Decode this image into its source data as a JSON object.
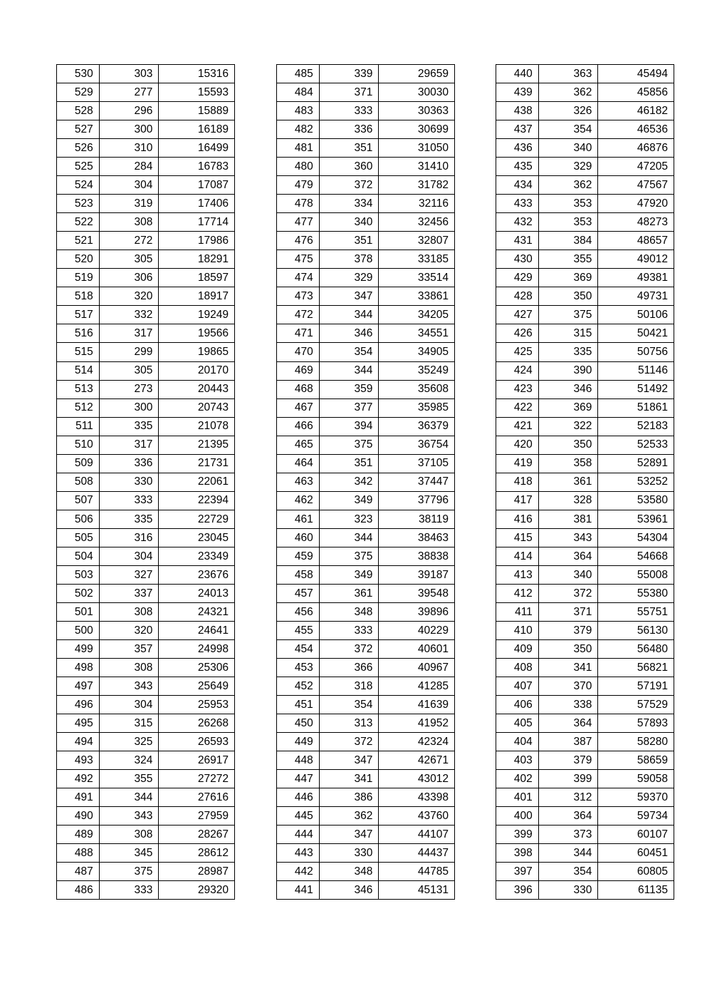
{
  "tables": [
    {
      "rows": [
        [
          "530",
          "303",
          "15316"
        ],
        [
          "529",
          "277",
          "15593"
        ],
        [
          "528",
          "296",
          "15889"
        ],
        [
          "527",
          "300",
          "16189"
        ],
        [
          "526",
          "310",
          "16499"
        ],
        [
          "525",
          "284",
          "16783"
        ],
        [
          "524",
          "304",
          "17087"
        ],
        [
          "523",
          "319",
          "17406"
        ],
        [
          "522",
          "308",
          "17714"
        ],
        [
          "521",
          "272",
          "17986"
        ],
        [
          "520",
          "305",
          "18291"
        ],
        [
          "519",
          "306",
          "18597"
        ],
        [
          "518",
          "320",
          "18917"
        ],
        [
          "517",
          "332",
          "19249"
        ],
        [
          "516",
          "317",
          "19566"
        ],
        [
          "515",
          "299",
          "19865"
        ],
        [
          "514",
          "305",
          "20170"
        ],
        [
          "513",
          "273",
          "20443"
        ],
        [
          "512",
          "300",
          "20743"
        ],
        [
          "511",
          "335",
          "21078"
        ],
        [
          "510",
          "317",
          "21395"
        ],
        [
          "509",
          "336",
          "21731"
        ],
        [
          "508",
          "330",
          "22061"
        ],
        [
          "507",
          "333",
          "22394"
        ],
        [
          "506",
          "335",
          "22729"
        ],
        [
          "505",
          "316",
          "23045"
        ],
        [
          "504",
          "304",
          "23349"
        ],
        [
          "503",
          "327",
          "23676"
        ],
        [
          "502",
          "337",
          "24013"
        ],
        [
          "501",
          "308",
          "24321"
        ],
        [
          "500",
          "320",
          "24641"
        ],
        [
          "499",
          "357",
          "24998"
        ],
        [
          "498",
          "308",
          "25306"
        ],
        [
          "497",
          "343",
          "25649"
        ],
        [
          "496",
          "304",
          "25953"
        ],
        [
          "495",
          "315",
          "26268"
        ],
        [
          "494",
          "325",
          "26593"
        ],
        [
          "493",
          "324",
          "26917"
        ],
        [
          "492",
          "355",
          "27272"
        ],
        [
          "491",
          "344",
          "27616"
        ],
        [
          "490",
          "343",
          "27959"
        ],
        [
          "489",
          "308",
          "28267"
        ],
        [
          "488",
          "345",
          "28612"
        ],
        [
          "487",
          "375",
          "28987"
        ],
        [
          "486",
          "333",
          "29320"
        ]
      ]
    },
    {
      "rows": [
        [
          "485",
          "339",
          "29659"
        ],
        [
          "484",
          "371",
          "30030"
        ],
        [
          "483",
          "333",
          "30363"
        ],
        [
          "482",
          "336",
          "30699"
        ],
        [
          "481",
          "351",
          "31050"
        ],
        [
          "480",
          "360",
          "31410"
        ],
        [
          "479",
          "372",
          "31782"
        ],
        [
          "478",
          "334",
          "32116"
        ],
        [
          "477",
          "340",
          "32456"
        ],
        [
          "476",
          "351",
          "32807"
        ],
        [
          "475",
          "378",
          "33185"
        ],
        [
          "474",
          "329",
          "33514"
        ],
        [
          "473",
          "347",
          "33861"
        ],
        [
          "472",
          "344",
          "34205"
        ],
        [
          "471",
          "346",
          "34551"
        ],
        [
          "470",
          "354",
          "34905"
        ],
        [
          "469",
          "344",
          "35249"
        ],
        [
          "468",
          "359",
          "35608"
        ],
        [
          "467",
          "377",
          "35985"
        ],
        [
          "466",
          "394",
          "36379"
        ],
        [
          "465",
          "375",
          "36754"
        ],
        [
          "464",
          "351",
          "37105"
        ],
        [
          "463",
          "342",
          "37447"
        ],
        [
          "462",
          "349",
          "37796"
        ],
        [
          "461",
          "323",
          "38119"
        ],
        [
          "460",
          "344",
          "38463"
        ],
        [
          "459",
          "375",
          "38838"
        ],
        [
          "458",
          "349",
          "39187"
        ],
        [
          "457",
          "361",
          "39548"
        ],
        [
          "456",
          "348",
          "39896"
        ],
        [
          "455",
          "333",
          "40229"
        ],
        [
          "454",
          "372",
          "40601"
        ],
        [
          "453",
          "366",
          "40967"
        ],
        [
          "452",
          "318",
          "41285"
        ],
        [
          "451",
          "354",
          "41639"
        ],
        [
          "450",
          "313",
          "41952"
        ],
        [
          "449",
          "372",
          "42324"
        ],
        [
          "448",
          "347",
          "42671"
        ],
        [
          "447",
          "341",
          "43012"
        ],
        [
          "446",
          "386",
          "43398"
        ],
        [
          "445",
          "362",
          "43760"
        ],
        [
          "444",
          "347",
          "44107"
        ],
        [
          "443",
          "330",
          "44437"
        ],
        [
          "442",
          "348",
          "44785"
        ],
        [
          "441",
          "346",
          "45131"
        ]
      ]
    },
    {
      "rows": [
        [
          "440",
          "363",
          "45494"
        ],
        [
          "439",
          "362",
          "45856"
        ],
        [
          "438",
          "326",
          "46182"
        ],
        [
          "437",
          "354",
          "46536"
        ],
        [
          "436",
          "340",
          "46876"
        ],
        [
          "435",
          "329",
          "47205"
        ],
        [
          "434",
          "362",
          "47567"
        ],
        [
          "433",
          "353",
          "47920"
        ],
        [
          "432",
          "353",
          "48273"
        ],
        [
          "431",
          "384",
          "48657"
        ],
        [
          "430",
          "355",
          "49012"
        ],
        [
          "429",
          "369",
          "49381"
        ],
        [
          "428",
          "350",
          "49731"
        ],
        [
          "427",
          "375",
          "50106"
        ],
        [
          "426",
          "315",
          "50421"
        ],
        [
          "425",
          "335",
          "50756"
        ],
        [
          "424",
          "390",
          "51146"
        ],
        [
          "423",
          "346",
          "51492"
        ],
        [
          "422",
          "369",
          "51861"
        ],
        [
          "421",
          "322",
          "52183"
        ],
        [
          "420",
          "350",
          "52533"
        ],
        [
          "419",
          "358",
          "52891"
        ],
        [
          "418",
          "361",
          "53252"
        ],
        [
          "417",
          "328",
          "53580"
        ],
        [
          "416",
          "381",
          "53961"
        ],
        [
          "415",
          "343",
          "54304"
        ],
        [
          "414",
          "364",
          "54668"
        ],
        [
          "413",
          "340",
          "55008"
        ],
        [
          "412",
          "372",
          "55380"
        ],
        [
          "411",
          "371",
          "55751"
        ],
        [
          "410",
          "379",
          "56130"
        ],
        [
          "409",
          "350",
          "56480"
        ],
        [
          "408",
          "341",
          "56821"
        ],
        [
          "407",
          "370",
          "57191"
        ],
        [
          "406",
          "338",
          "57529"
        ],
        [
          "405",
          "364",
          "57893"
        ],
        [
          "404",
          "387",
          "58280"
        ],
        [
          "403",
          "379",
          "58659"
        ],
        [
          "402",
          "399",
          "59058"
        ],
        [
          "401",
          "312",
          "59370"
        ],
        [
          "400",
          "364",
          "59734"
        ],
        [
          "399",
          "373",
          "60107"
        ],
        [
          "398",
          "344",
          "60451"
        ],
        [
          "397",
          "354",
          "60805"
        ],
        [
          "396",
          "330",
          "61135"
        ]
      ]
    }
  ]
}
